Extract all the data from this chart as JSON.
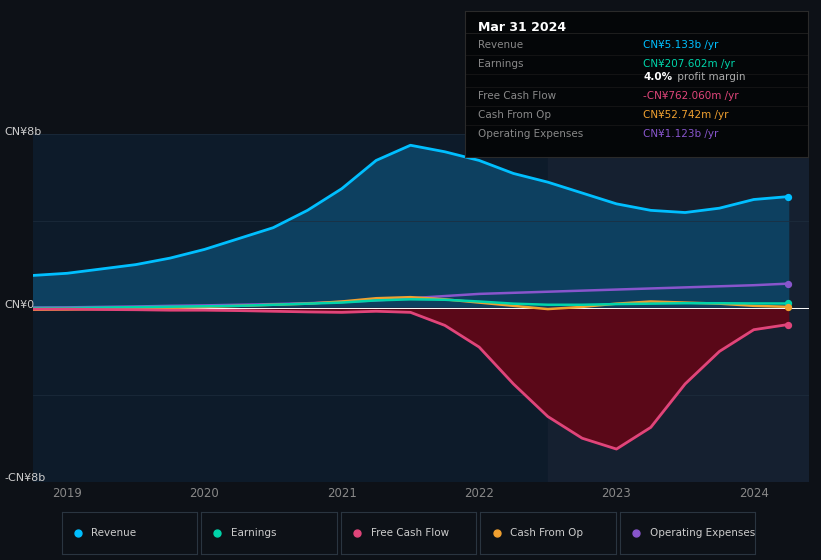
{
  "background_color": "#0d1117",
  "plot_bg_color": "#0d1b2a",
  "forecast_bg_color": "#152030",
  "years": [
    2018.75,
    2019.0,
    2019.25,
    2019.5,
    2019.75,
    2020.0,
    2020.25,
    2020.5,
    2020.75,
    2021.0,
    2021.25,
    2021.5,
    2021.75,
    2022.0,
    2022.25,
    2022.5,
    2022.75,
    2023.0,
    2023.25,
    2023.5,
    2023.75,
    2024.0,
    2024.25
  ],
  "revenue": [
    1.5,
    1.6,
    1.8,
    2.0,
    2.3,
    2.7,
    3.2,
    3.7,
    4.5,
    5.5,
    6.8,
    7.5,
    7.2,
    6.8,
    6.2,
    5.8,
    5.3,
    4.8,
    4.5,
    4.4,
    4.6,
    5.0,
    5.133
  ],
  "earnings": [
    0.0,
    0.0,
    0.02,
    0.04,
    0.06,
    0.08,
    0.1,
    0.15,
    0.2,
    0.25,
    0.35,
    0.4,
    0.38,
    0.3,
    0.2,
    0.15,
    0.15,
    0.18,
    0.2,
    0.22,
    0.22,
    0.21,
    0.208
  ],
  "free_cash_flow": [
    -0.05,
    -0.05,
    -0.07,
    -0.08,
    -0.1,
    -0.1,
    -0.12,
    -0.15,
    -0.18,
    -0.2,
    -0.15,
    -0.2,
    -0.8,
    -1.8,
    -3.5,
    -5.0,
    -6.0,
    -6.5,
    -5.5,
    -3.5,
    -2.0,
    -1.0,
    -0.762
  ],
  "cash_from_op": [
    -0.08,
    -0.07,
    -0.05,
    -0.03,
    0.0,
    0.05,
    0.1,
    0.15,
    0.2,
    0.3,
    0.45,
    0.5,
    0.4,
    0.25,
    0.1,
    -0.05,
    0.05,
    0.2,
    0.3,
    0.25,
    0.2,
    0.1,
    0.053
  ],
  "operating_expenses": [
    0.02,
    0.03,
    0.05,
    0.07,
    0.1,
    0.12,
    0.15,
    0.18,
    0.22,
    0.28,
    0.35,
    0.45,
    0.55,
    0.65,
    0.7,
    0.75,
    0.8,
    0.85,
    0.9,
    0.95,
    1.0,
    1.05,
    1.123
  ],
  "revenue_color": "#00bfff",
  "earnings_color": "#00d4aa",
  "free_cash_flow_color": "#e0457a",
  "cash_from_op_color": "#f0a030",
  "operating_expenses_color": "#8855cc",
  "revenue_fill_color": "#0d4060",
  "fcf_fill_color": "#5a0818",
  "forecast_start": 2022.5,
  "ylim_min": -8,
  "ylim_max": 8,
  "ylabel_top": "CN¥8b",
  "ylabel_bottom": "-CN¥8b",
  "ylabel_mid": "CN¥0",
  "grid_color": "#1e2d3d",
  "zero_line_color": "#ffffff",
  "tooltip_title": "Mar 31 2024",
  "tooltip_bg": "#040608",
  "tooltip_border": "#2a2a2a",
  "tooltip_data": [
    {
      "label": "Revenue",
      "value": "CN¥5.133b /yr",
      "color": "#00bfff"
    },
    {
      "label": "Earnings",
      "value": "CN¥207.602m /yr",
      "color": "#00d4aa"
    },
    {
      "label": "",
      "value": "4.0%",
      "suffix": " profit margin",
      "color": "#ffffff"
    },
    {
      "label": "Free Cash Flow",
      "value": "-CN¥762.060m /yr",
      "color": "#e0457a"
    },
    {
      "label": "Cash From Op",
      "value": "CN¥52.742m /yr",
      "color": "#f0a030"
    },
    {
      "label": "Operating Expenses",
      "value": "CN¥1.123b /yr",
      "color": "#8855cc"
    }
  ],
  "legend_items": [
    {
      "label": "Revenue",
      "color": "#00bfff"
    },
    {
      "label": "Earnings",
      "color": "#00d4aa"
    },
    {
      "label": "Free Cash Flow",
      "color": "#e0457a"
    },
    {
      "label": "Cash From Op",
      "color": "#f0a030"
    },
    {
      "label": "Operating Expenses",
      "color": "#8855cc"
    }
  ],
  "x_ticks": [
    2019,
    2020,
    2021,
    2022,
    2023,
    2024
  ],
  "fig_width": 8.21,
  "fig_height": 5.6
}
